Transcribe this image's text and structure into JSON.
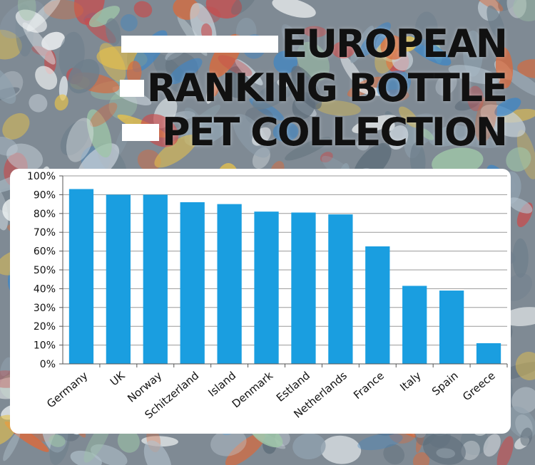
{
  "title_lines": [
    "EUROPEAN",
    "RANKING BOTTLE",
    "PET COLLECTION"
  ],
  "colors": {
    "bar": "#1a9ee0",
    "grid": "#9a9a9a",
    "card": "#ffffff",
    "title": "#111111"
  },
  "chart_data": {
    "type": "bar",
    "title": "EUROPEAN RANKING BOTTLE PET COLLECTION",
    "categories": [
      "Germany",
      "UK",
      "Norway",
      "Schitzerland",
      "Island",
      "Denmark",
      "Estland",
      "Netherlands",
      "France",
      "Italy",
      "Spain",
      "Greece"
    ],
    "values": [
      93,
      90,
      90,
      86,
      85,
      81,
      80.5,
      79.5,
      62.5,
      41.5,
      39,
      11
    ],
    "ylim": [
      0,
      100
    ],
    "yticks": [
      "0%",
      "10%",
      "20%",
      "30%",
      "40%",
      "50%",
      "60%",
      "70%",
      "80%",
      "90%",
      "100%"
    ],
    "grid": true,
    "legend": "none"
  }
}
